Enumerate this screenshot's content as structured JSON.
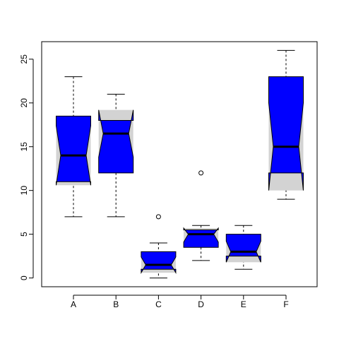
{
  "chart_data": {
    "type": "boxplot",
    "notched": true,
    "categories": [
      "A",
      "B",
      "C",
      "D",
      "E",
      "F"
    ],
    "boxes": [
      {
        "name": "A",
        "whisker_low": 7,
        "q1": 11,
        "median": 14,
        "q3": 18.5,
        "whisker_high": 23,
        "notch_low": 10.6,
        "notch_high": 17.4,
        "outliers": []
      },
      {
        "name": "B",
        "whisker_low": 7,
        "q1": 12,
        "median": 16.5,
        "q3": 18,
        "whisker_high": 21,
        "notch_low": 13.8,
        "notch_high": 19.2,
        "outliers": []
      },
      {
        "name": "C",
        "whisker_low": 0,
        "q1": 1,
        "median": 1.5,
        "q3": 3,
        "whisker_high": 4,
        "notch_low": 0.6,
        "notch_high": 2.4,
        "outliers": [
          7
        ]
      },
      {
        "name": "D",
        "whisker_low": 2,
        "q1": 3.5,
        "median": 5,
        "q3": 5.5,
        "whisker_high": 6,
        "notch_low": 4.1,
        "notch_high": 5.7,
        "outliers": [
          12
        ]
      },
      {
        "name": "E",
        "whisker_low": 1,
        "q1": 2.5,
        "median": 3,
        "q3": 5,
        "whisker_high": 6,
        "notch_low": 1.8,
        "notch_high": 4.2,
        "outliers": []
      },
      {
        "name": "F",
        "whisker_low": 9,
        "q1": 12,
        "median": 15,
        "q3": 23,
        "whisker_high": 26,
        "notch_low": 10,
        "notch_high": 20,
        "outliers": []
      }
    ],
    "yticks": [
      0,
      5,
      10,
      15,
      20,
      25
    ],
    "ylim": [
      -1,
      27
    ],
    "title": "",
    "xlabel": "",
    "ylabel": "",
    "grid": false,
    "colors": {
      "box_fill": "#d3d3d3",
      "notch_fill": "#0000ff",
      "line": "#000000"
    }
  }
}
